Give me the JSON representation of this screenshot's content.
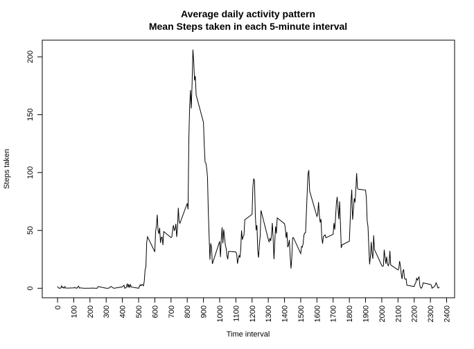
{
  "chart_data": {
    "type": "line",
    "title": "Average daily activity pattern",
    "subtitle": "Mean Steps taken in each 5-minute interval",
    "xlabel": "Time interval",
    "ylabel": "Steps taken",
    "color": "#000000",
    "xlim": [
      -94.2,
      2449.2
    ],
    "ylim": [
      -8.2,
      214.4
    ],
    "xticks": [
      0,
      100,
      200,
      300,
      400,
      500,
      600,
      700,
      800,
      900,
      1000,
      1100,
      1200,
      1300,
      1400,
      1500,
      1600,
      1700,
      1800,
      1900,
      2000,
      2100,
      2200,
      2300,
      2400
    ],
    "yticks": [
      0,
      50,
      100,
      150,
      200
    ],
    "x": [
      0,
      5,
      10,
      15,
      20,
      25,
      30,
      35,
      40,
      45,
      50,
      55,
      100,
      105,
      110,
      115,
      120,
      125,
      130,
      135,
      140,
      145,
      150,
      155,
      200,
      215,
      230,
      245,
      250,
      300,
      315,
      330,
      345,
      350,
      400,
      410,
      415,
      420,
      425,
      430,
      435,
      440,
      445,
      450,
      455,
      500,
      505,
      510,
      515,
      520,
      525,
      530,
      535,
      540,
      545,
      550,
      555,
      600,
      605,
      610,
      615,
      620,
      625,
      630,
      635,
      640,
      645,
      650,
      655,
      700,
      705,
      710,
      715,
      720,
      725,
      730,
      735,
      740,
      745,
      750,
      755,
      800,
      805,
      810,
      815,
      820,
      825,
      830,
      835,
      840,
      845,
      850,
      855,
      900,
      905,
      910,
      915,
      920,
      925,
      930,
      935,
      940,
      945,
      950,
      955,
      1000,
      1005,
      1010,
      1015,
      1020,
      1025,
      1030,
      1035,
      1040,
      1045,
      1050,
      1055,
      1100,
      1105,
      1110,
      1115,
      1120,
      1125,
      1130,
      1135,
      1140,
      1145,
      1150,
      1155,
      1200,
      1205,
      1210,
      1215,
      1220,
      1225,
      1230,
      1235,
      1240,
      1245,
      1250,
      1255,
      1300,
      1305,
      1310,
      1315,
      1320,
      1325,
      1330,
      1335,
      1340,
      1345,
      1350,
      1355,
      1400,
      1405,
      1410,
      1415,
      1420,
      1425,
      1430,
      1435,
      1440,
      1445,
      1450,
      1455,
      1500,
      1505,
      1510,
      1515,
      1520,
      1525,
      1530,
      1535,
      1540,
      1545,
      1550,
      1555,
      1600,
      1605,
      1610,
      1615,
      1620,
      1625,
      1630,
      1635,
      1640,
      1645,
      1650,
      1655,
      1700,
      1705,
      1710,
      1715,
      1720,
      1725,
      1730,
      1735,
      1740,
      1745,
      1750,
      1755,
      1800,
      1805,
      1810,
      1815,
      1820,
      1825,
      1830,
      1835,
      1840,
      1845,
      1850,
      1855,
      1900,
      1905,
      1910,
      1915,
      1920,
      1925,
      1930,
      1935,
      1940,
      1945,
      1950,
      1955,
      2000,
      2005,
      2010,
      2015,
      2020,
      2025,
      2030,
      2035,
      2040,
      2045,
      2050,
      2055,
      2100,
      2105,
      2110,
      2115,
      2120,
      2125,
      2130,
      2135,
      2140,
      2145,
      2150,
      2155,
      2200,
      2205,
      2210,
      2215,
      2220,
      2225,
      2230,
      2235,
      2240,
      2245,
      2250,
      2255,
      2300,
      2305,
      2310,
      2315,
      2320,
      2325,
      2330,
      2335,
      2340,
      2345,
      2350,
      2355
    ],
    "values": [
      1.7,
      0.3,
      0.1,
      0.2,
      0.1,
      2.1,
      0.5,
      0.9,
      0,
      1.5,
      0.3,
      0.1,
      0.3,
      0.7,
      0.2,
      0.3,
      0,
      1.1,
      1.8,
      0.2,
      0.2,
      0.4,
      0.3,
      0,
      0,
      0.2,
      0,
      0,
      1.5,
      0,
      0,
      1.6,
      0.1,
      0,
      1.2,
      2.6,
      0,
      0.3,
      0.9,
      4.1,
      0.7,
      3.5,
      0.8,
      3.1,
      1.1,
      0,
      1.6,
      3.0,
      2.2,
      3.3,
      3.0,
      2.1,
      6.1,
      16.0,
      18.3,
      39.5,
      44.5,
      31.5,
      49.3,
      53.8,
      63.5,
      50.0,
      47.1,
      52.2,
      39.3,
      44.0,
      44.2,
      37.4,
      49.0,
      43.8,
      44.4,
      50.5,
      54.5,
      49.9,
      51.0,
      55.7,
      44.3,
      52.3,
      69.5,
      57.8,
      56.2,
      73.4,
      68.2,
      129.4,
      157.5,
      171.2,
      155.4,
      177.3,
      206.2,
      195.9,
      179.6,
      183.4,
      167.0,
      143.5,
      124.0,
      109.1,
      108.1,
      103.7,
      96.0,
      66.2,
      45.2,
      24.8,
      38.8,
      35.0,
      21.1,
      40.6,
      27.0,
      42.4,
      52.7,
      38.9,
      50.8,
      44.3,
      37.4,
      34.7,
      28.3,
      25.1,
      31.9,
      31.4,
      29.7,
      21.3,
      25.5,
      28.4,
      26.5,
      33.4,
      50.0,
      42.0,
      44.6,
      46.0,
      59.2,
      63.9,
      87.7,
      94.8,
      92.8,
      63.4,
      50.2,
      54.5,
      32.4,
      26.5,
      37.7,
      45.1,
      67.3,
      42.3,
      39.9,
      43.3,
      41.0,
      46.2,
      56.4,
      42.8,
      25.1,
      40.0,
      53.5,
      47.3,
      60.8,
      55.8,
      52.0,
      43.6,
      48.7,
      35.5,
      37.5,
      41.8,
      27.5,
      17.1,
      26.1,
      43.6,
      43.8,
      30.0,
      36.1,
      35.5,
      38.8,
      46.0,
      47.8,
      48.1,
      65.3,
      82.9,
      98.7,
      102.1,
      84.0,
      62.1,
      64.1,
      74.5,
      63.2,
      56.9,
      59.8,
      43.9,
      38.6,
      44.7,
      45.5,
      46.2,
      43.7,
      46.6,
      56.3,
      50.7,
      61.2,
      73.4,
      79.0,
      68.9,
      59.7,
      75.1,
      56.5,
      34.8,
      37.5,
      40.7,
      58.0,
      74.7,
      85.3,
      59.3,
      67.8,
      77.7,
      74.2,
      85.3,
      99.5,
      86.6,
      85.6,
      84.9,
      77.8,
      58.0,
      53.4,
      36.3,
      20.7,
      27.4,
      40.0,
      30.2,
      25.5,
      45.7,
      33.5,
      19.6,
      19.0,
      19.3,
      33.3,
      26.8,
      21.2,
      27.3,
      21.3,
      19.5,
      21.3,
      32.3,
      20.2,
      15.9,
      17.2,
      23.5,
      19.2,
      12.5,
      8.0,
      14.7,
      16.3,
      8.7,
      7.8,
      8.1,
      2.6,
      1.5,
      3.7,
      4.8,
      8.5,
      7.1,
      8.7,
      9.8,
      2.2,
      0.3,
      0.1,
      1.6,
      4.6,
      3.3,
      2.8,
      0,
      0.8,
      1.0,
      1.6,
      2.6,
      4.7,
      3.3,
      0.6,
      0.2,
      1.1
    ]
  }
}
